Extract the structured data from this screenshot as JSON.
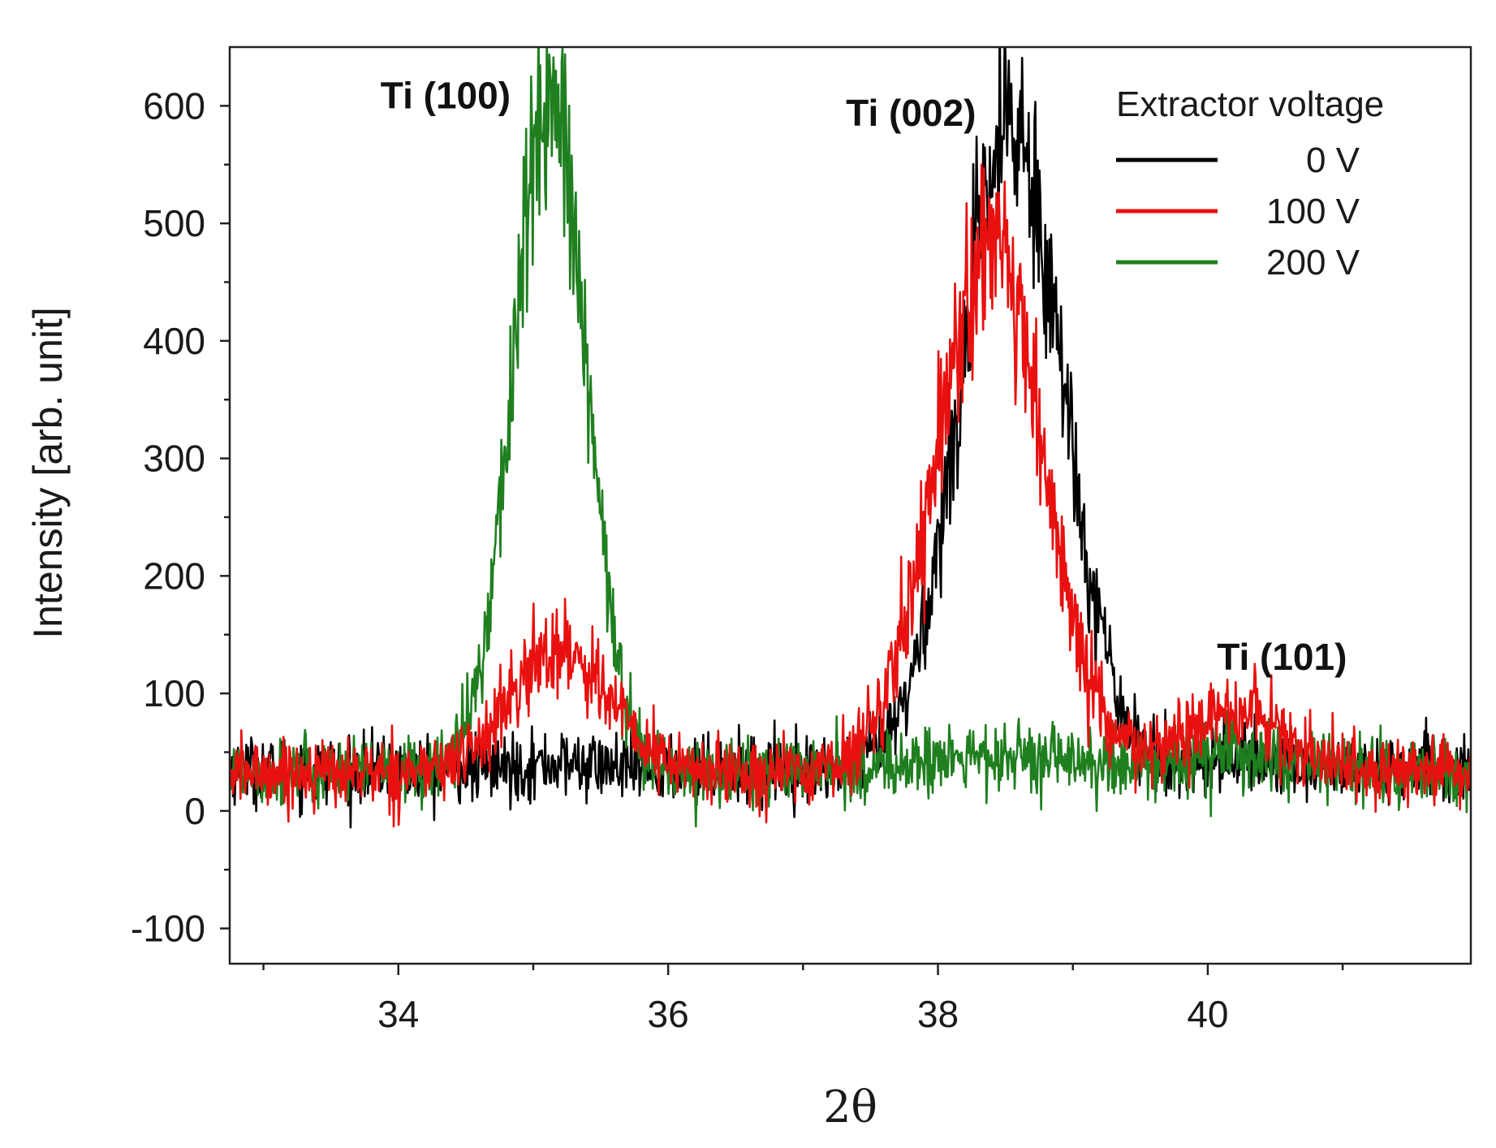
{
  "chart_data": {
    "type": "line",
    "title": "",
    "xlabel": "2θ",
    "ylabel": "Intensity [arb. unit]",
    "xlim": [
      32.75,
      41.95
    ],
    "ylim": [
      -130,
      650
    ],
    "x_ticks": [
      34,
      36,
      38,
      40
    ],
    "x_tick_labels": [
      "34",
      "36",
      "38",
      "40"
    ],
    "x_minor_ticks": [
      33,
      35,
      37,
      39,
      41
    ],
    "y_ticks": [
      -100,
      0,
      100,
      200,
      300,
      400,
      500,
      600
    ],
    "y_tick_labels": [
      "-100",
      "0",
      "100",
      "200",
      "300",
      "400",
      "500",
      "600"
    ],
    "grid": false,
    "legend": {
      "title": "Extractor voltage",
      "position": "top-right"
    },
    "x_range": [
      32.75,
      41.95
    ],
    "series": [
      {
        "name": "0 V",
        "color": "#000000",
        "baseline": 35,
        "noise": 14,
        "peaks": [
          {
            "center": 35.2,
            "height": 5,
            "sigma": 0.3
          },
          {
            "center": 38.55,
            "height": 545,
            "sigma": 0.38
          },
          {
            "center": 40.2,
            "height": 10,
            "sigma": 0.3
          }
        ]
      },
      {
        "name": "100 V",
        "color": "#e8110f",
        "baseline": 33,
        "noise": 14,
        "peaks": [
          {
            "center": 35.2,
            "height": 105,
            "sigma": 0.36
          },
          {
            "center": 38.38,
            "height": 440,
            "sigma": 0.4
          },
          {
            "center": 40.2,
            "height": 50,
            "sigma": 0.38
          }
        ]
      },
      {
        "name": "200 V",
        "color": "#1f7f1f",
        "baseline": 33,
        "noise": 14,
        "peaks": [
          {
            "center": 35.12,
            "height": 570,
            "sigma": 0.27
          },
          {
            "center": 38.4,
            "height": 12,
            "sigma": 0.6
          },
          {
            "center": 40.2,
            "height": 15,
            "sigma": 0.4
          }
        ]
      }
    ],
    "annotations": [
      {
        "text": "Ti (100)",
        "x": 34.35,
        "y": 598
      },
      {
        "text": "Ti (002)",
        "x": 37.8,
        "y": 583
      },
      {
        "text": "Ti (101)",
        "x": 40.55,
        "y": 120
      }
    ]
  }
}
